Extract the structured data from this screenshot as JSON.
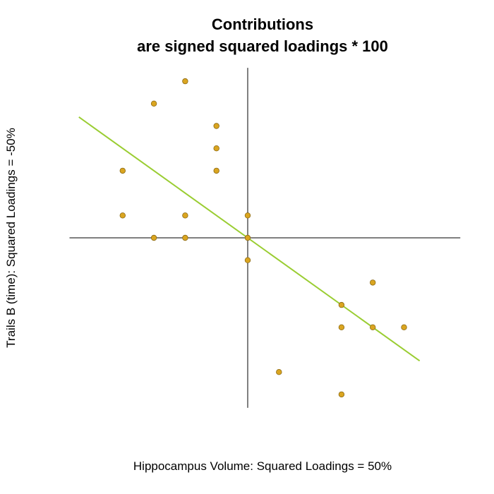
{
  "chart_data": {
    "type": "scatter",
    "title": "Contributions",
    "subtitle": "are signed squared loadings * 100",
    "xlabel": "Hippocampus Volume: Squared Loadings = 50%",
    "ylabel": "Trails B (time): Squared Loadings = -50%",
    "xlim": [
      -5.7,
      6.8
    ],
    "ylim": [
      -7.6,
      7.6
    ],
    "axes_through_origin": true,
    "grid": false,
    "point_color": "#DAA520",
    "point_edge_color": "#8B6914",
    "line_color": "#9ACD32",
    "points": [
      {
        "x": -2,
        "y": 7
      },
      {
        "x": -3,
        "y": 6
      },
      {
        "x": -1,
        "y": 5
      },
      {
        "x": -1,
        "y": 4
      },
      {
        "x": -4,
        "y": 3
      },
      {
        "x": -1,
        "y": 3
      },
      {
        "x": -4,
        "y": 1
      },
      {
        "x": -2,
        "y": 1
      },
      {
        "x": 0,
        "y": 1
      },
      {
        "x": -3,
        "y": 0
      },
      {
        "x": -2,
        "y": 0
      },
      {
        "x": 0,
        "y": 0
      },
      {
        "x": 0,
        "y": -1
      },
      {
        "x": 4,
        "y": -2
      },
      {
        "x": 3,
        "y": -3
      },
      {
        "x": 3,
        "y": -4
      },
      {
        "x": 4,
        "y": -4
      },
      {
        "x": 5,
        "y": -4
      },
      {
        "x": 1,
        "y": -6
      },
      {
        "x": 3,
        "y": -7
      }
    ],
    "trend_line": {
      "slope": -1,
      "intercept": 0
    }
  }
}
